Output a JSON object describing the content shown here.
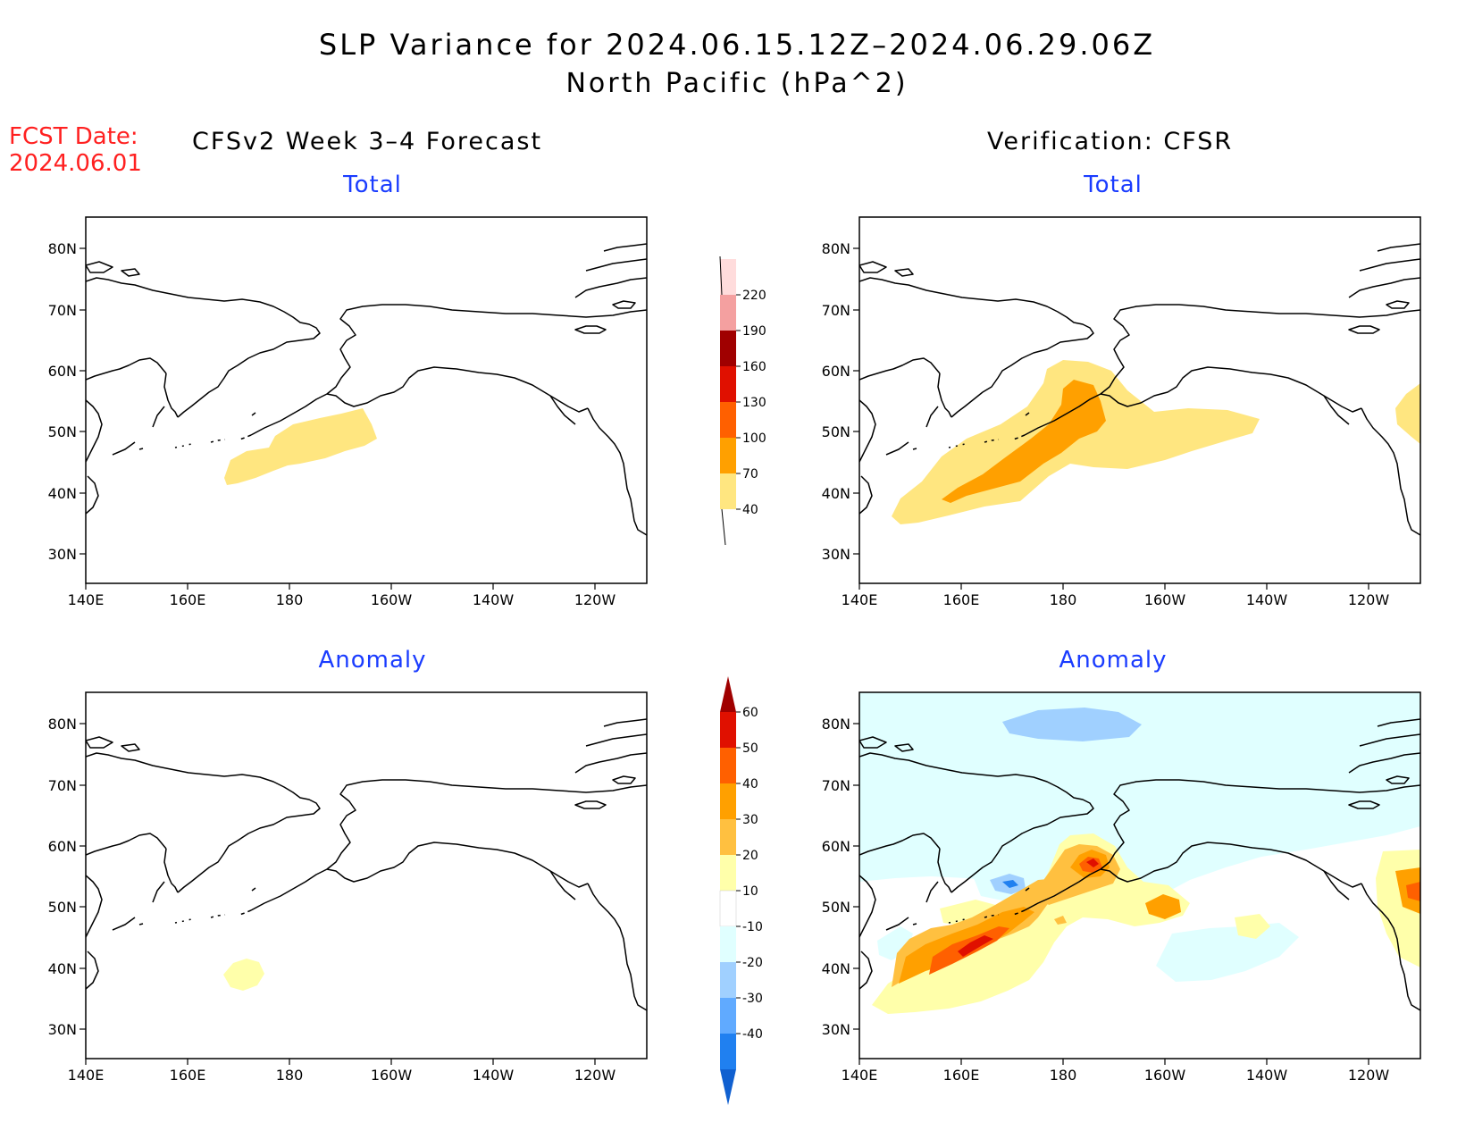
{
  "title": {
    "line1": "SLP Variance for 2024.06.15.12Z–2024.06.29.06Z",
    "line2": "North Pacific (hPa^2)"
  },
  "forecast_date": {
    "label": "FCST Date:",
    "value": "2024.06.01"
  },
  "columns": {
    "left": "CFSv2 Week 3–4 Forecast",
    "right": "Verification: CFSR"
  },
  "panels": [
    {
      "id": "fcst-total",
      "title": "Total"
    },
    {
      "id": "verif-total",
      "title": "Total"
    },
    {
      "id": "fcst-anomaly",
      "title": "Anomaly"
    },
    {
      "id": "verif-anomaly",
      "title": "Anomaly"
    }
  ],
  "axes": {
    "lon_labels": [
      "140E",
      "160E",
      "180",
      "160W",
      "140W",
      "120W"
    ],
    "lat_labels": [
      "80N",
      "70N",
      "60N",
      "50N",
      "40N",
      "30N"
    ]
  },
  "colorbars": {
    "total": {
      "labels": [
        "40",
        "70",
        "100",
        "130",
        "160",
        "190",
        "220"
      ],
      "colors": [
        "#ffe680",
        "#ffa000",
        "#ff6000",
        "#e01000",
        "#a00000",
        "#f4a0a0",
        "#ffdcdc"
      ]
    },
    "anomaly": {
      "labels": [
        "60",
        "50",
        "40",
        "30",
        "20",
        "10",
        "-10",
        "-20",
        "-30",
        "-40"
      ],
      "colors": [
        "#a00000",
        "#e01000",
        "#ff6000",
        "#ffa000",
        "#ffc040",
        "#ffffaa",
        "#ffffff",
        "#e0ffff",
        "#a0d0ff",
        "#60aaff",
        "#2080f0",
        "#1060d0"
      ]
    }
  }
}
